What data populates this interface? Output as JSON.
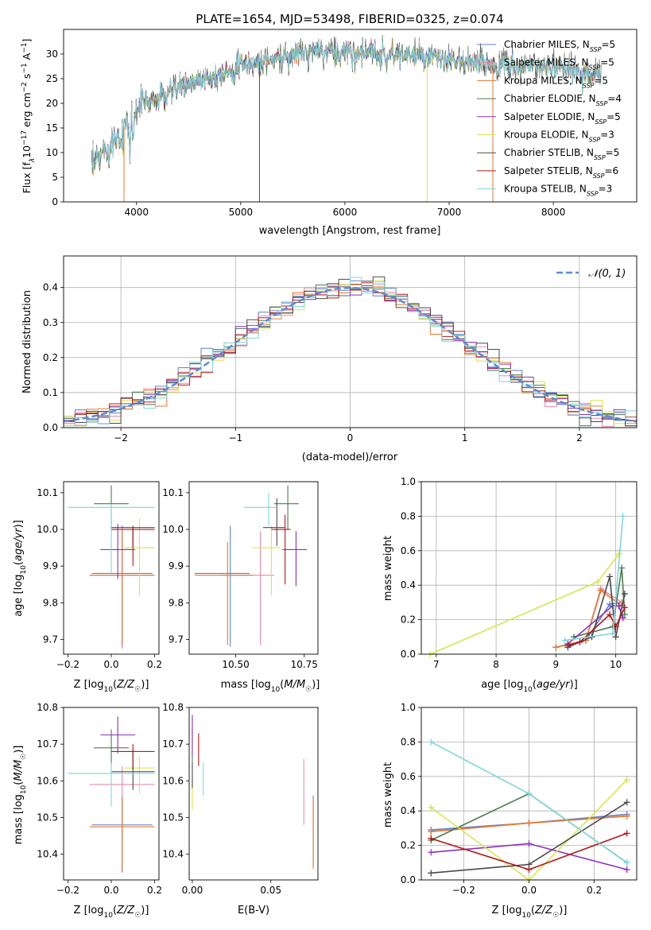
{
  "figure_title": "PLATE=1654, MJD=53498, FIBERID=0325, z=0.074",
  "colors": {
    "Chabrier MILES": "#5b7fd0",
    "Salpeter MILES": "#e98aa8",
    "Kroupa MILES": "#e07a2e",
    "Chabrier ELODIE": "#4c7a4e",
    "Salpeter ELODIE": "#8a2fbf",
    "Kroupa ELODIE": "#d7e64a",
    "Chabrier STELIB": "#4a4a4a",
    "Salpeter STELIB": "#b3181a",
    "Kroupa STELIB": "#7fd6dc",
    "gauss": "#5b8bd6"
  },
  "chart_data": [
    {
      "id": "spectrum",
      "type": "line",
      "xlabel": "wavelength [Angstrom, rest frame]",
      "ylabel": "Flux [f",
      "xlim": [
        3300,
        8800
      ],
      "ylim": [
        0,
        35
      ],
      "xticks": [
        4000,
        5000,
        6000,
        7000,
        8000
      ],
      "yticks": [
        0,
        5,
        10,
        15,
        20,
        25,
        30
      ],
      "legend_position": "right",
      "legend": [
        "Chabrier MILES, N=5",
        "Salpeter MILES, N=5",
        "Kroupa MILES, N=5",
        "Chabrier ELODIE, N=4",
        "Salpeter ELODIE, N=5",
        "Kroupa ELODIE, N=3",
        "Chabrier STELIB, N=5",
        "Salpeter STELIB, N=6",
        "Kroupa STELIB, N=3"
      ],
      "continuum": [
        [
          3560,
          6
        ],
        [
          3700,
          11
        ],
        [
          3850,
          14
        ],
        [
          3950,
          17
        ],
        [
          4050,
          20
        ],
        [
          4200,
          21
        ],
        [
          4400,
          23
        ],
        [
          4600,
          25
        ],
        [
          4800,
          26
        ],
        [
          5000,
          27.5
        ],
        [
          5200,
          28.5
        ],
        [
          5500,
          30
        ],
        [
          5800,
          30.5
        ],
        [
          6100,
          30.5
        ],
        [
          6400,
          30
        ],
        [
          6700,
          29.5
        ],
        [
          7000,
          28.5
        ],
        [
          7300,
          28
        ],
        [
          7600,
          27.5
        ],
        [
          7900,
          27.5
        ],
        [
          8200,
          26.5
        ],
        [
          8450,
          26
        ]
      ],
      "dips": [
        [
          3880,
          0
        ],
        [
          5180,
          0
        ],
        [
          6790,
          0
        ],
        [
          7420,
          0
        ]
      ]
    },
    {
      "id": "residual-histogram",
      "type": "histogram",
      "xlabel": "(data-model)/error",
      "ylabel": "Normed distribution",
      "xlim": [
        -2.5,
        2.5
      ],
      "ylim": [
        0,
        0.49
      ],
      "xticks": [
        -2,
        -1,
        0,
        1,
        2
      ],
      "yticks": [
        0,
        0.1,
        0.2,
        0.3,
        0.4
      ],
      "grid": true,
      "legend_position": "top-right",
      "gauss_label": "𝒩(0, 1)"
    },
    {
      "id": "age-vs-Z",
      "type": "scatter",
      "xlabel": "Z [log10(Z/Z☉)]",
      "ylabel": "age [log10(age/yr)]",
      "xlim": [
        -0.22,
        0.22
      ],
      "ylim": [
        9.66,
        10.13
      ],
      "xticks": [
        -0.2,
        0,
        0.2
      ],
      "yticks": [
        9.7,
        9.8,
        9.9,
        10.0,
        10.1
      ],
      "points": [
        {
          "model": "Chabrier MILES",
          "x": 0.05,
          "xerr": [
            0.14,
            0.14
          ],
          "y": 9.88,
          "yerr": [
            0.2,
            0.13
          ]
        },
        {
          "model": "Salpeter MILES",
          "x": 0.05,
          "xerr": [
            0.15,
            0.15
          ],
          "y": 9.875,
          "yerr": [
            0.2,
            0.13
          ]
        },
        {
          "model": "Kroupa MILES",
          "x": 0.05,
          "xerr": [
            0.15,
            0.15
          ],
          "y": 9.875,
          "yerr": [
            0.19,
            0.12
          ]
        },
        {
          "model": "Chabrier ELODIE",
          "x": 0.0,
          "xerr": [
            0.08,
            0.08
          ],
          "y": 10.07,
          "yerr": [
            0.07,
            0.05
          ]
        },
        {
          "model": "Salpeter ELODIE",
          "x": 0.03,
          "xerr": [
            0.08,
            0.08
          ],
          "y": 9.945,
          "yerr": [
            0.08,
            0.07
          ]
        },
        {
          "model": "Kroupa ELODIE",
          "x": 0.13,
          "xerr": [
            0.07,
            0.07
          ],
          "y": 9.95,
          "yerr": [
            0.13,
            0.08
          ]
        },
        {
          "model": "Chabrier STELIB",
          "x": 0.1,
          "xerr": [
            0.1,
            0.1
          ],
          "y": 10.005,
          "yerr": [
            0.05,
            0.0
          ]
        },
        {
          "model": "Salpeter STELIB",
          "x": 0.1,
          "xerr": [
            0.1,
            0.1
          ],
          "y": 10.0,
          "yerr": [
            0.1,
            0.01
          ]
        },
        {
          "model": "Kroupa STELIB",
          "x": 0.0,
          "xerr": [
            0.2,
            0.2
          ],
          "y": 10.06,
          "yerr": [
            0.18,
            0.01
          ]
        }
      ]
    },
    {
      "id": "age-vs-mass",
      "type": "scatter",
      "xlabel": "mass [log10(M/M☉)]",
      "ylabel": "",
      "xlim": [
        10.33,
        10.8
      ],
      "ylim": [
        9.66,
        10.13
      ],
      "xticks": [
        10.5,
        10.75
      ],
      "yticks": [
        9.7,
        9.8,
        9.9,
        10.0,
        10.1
      ],
      "points": [
        {
          "model": "Chabrier MILES",
          "x": 10.48,
          "xerr": [
            0.13,
            0.07
          ],
          "y": 9.88,
          "yerr": [
            0.2,
            0.13
          ]
        },
        {
          "model": "Salpeter MILES",
          "x": 10.59,
          "xerr": [
            0.14,
            0.05
          ],
          "y": 9.875,
          "yerr": [
            0.19,
            0.12
          ]
        },
        {
          "model": "Kroupa MILES",
          "x": 10.47,
          "xerr": [
            0.12,
            0.09
          ],
          "y": 9.875,
          "yerr": [
            0.19,
            0.09
          ]
        },
        {
          "model": "Chabrier ELODIE",
          "x": 10.69,
          "xerr": [
            0.05,
            0.04
          ],
          "y": 10.07,
          "yerr": [
            0.07,
            0.05
          ]
        },
        {
          "model": "Salpeter ELODIE",
          "x": 10.72,
          "xerr": [
            0.05,
            0.04
          ],
          "y": 9.945,
          "yerr": [
            0.1,
            0.05
          ]
        },
        {
          "model": "Kroupa ELODIE",
          "x": 10.63,
          "xerr": [
            0.07,
            0.03
          ],
          "y": 9.95,
          "yerr": [
            0.13,
            0.06
          ]
        },
        {
          "model": "Chabrier STELIB",
          "x": 10.65,
          "xerr": [
            0.05,
            0.03
          ],
          "y": 10.005,
          "yerr": [
            0.05,
            0.08
          ]
        },
        {
          "model": "Salpeter STELIB",
          "x": 10.68,
          "xerr": [
            0.05,
            0.02
          ],
          "y": 10.0,
          "yerr": [
            0.15,
            0.04
          ]
        },
        {
          "model": "Kroupa STELIB",
          "x": 10.62,
          "xerr": [
            0.09,
            0.03
          ],
          "y": 10.06,
          "yerr": [
            0.05,
            0.04
          ]
        }
      ]
    },
    {
      "id": "weight-vs-age",
      "type": "line",
      "xlabel": "age [log10(age/yr)]",
      "ylabel": "mass weight",
      "xlim": [
        6.75,
        10.35
      ],
      "ylim": [
        0,
        1.0
      ],
      "xticks": [
        7,
        8,
        9,
        10
      ],
      "yticks": [
        0,
        0.2,
        0.4,
        0.6,
        0.8,
        1.0
      ],
      "grid": true,
      "series": [
        {
          "model": "Chabrier MILES",
          "x": [
            9.0,
            9.5,
            9.9,
            10.1
          ],
          "y": [
            0.04,
            0.08,
            0.29,
            0.3
          ]
        },
        {
          "model": "Salpeter MILES",
          "x": [
            9.0,
            9.5,
            9.75,
            10.1
          ],
          "y": [
            0.04,
            0.08,
            0.38,
            0.3
          ]
        },
        {
          "model": "Kroupa MILES",
          "x": [
            9.0,
            9.5,
            9.75,
            10.1
          ],
          "y": [
            0.04,
            0.08,
            0.37,
            0.28
          ]
        },
        {
          "model": "Chabrier ELODIE",
          "x": [
            9.3,
            9.95,
            10.1,
            10.15
          ],
          "y": [
            0.1,
            0.16,
            0.5,
            0.23
          ]
        },
        {
          "model": "Salpeter ELODIE",
          "x": [
            9.2,
            9.95,
            10.05,
            10.12
          ],
          "y": [
            0.06,
            0.28,
            0.28,
            0.21
          ]
        },
        {
          "model": "Kroupa ELODIE",
          "x": [
            6.9,
            9.7,
            10.05
          ],
          "y": [
            0.0,
            0.42,
            0.58
          ]
        },
        {
          "model": "Chabrier STELIB",
          "x": [
            9.2,
            9.6,
            9.9,
            10.0,
            10.15
          ],
          "y": [
            0.04,
            0.1,
            0.45,
            0.1,
            0.35
          ]
        },
        {
          "model": "Salpeter STELIB",
          "x": [
            9.2,
            9.4,
            9.9,
            10.0,
            10.15
          ],
          "y": [
            0.05,
            0.07,
            0.23,
            0.16,
            0.27
          ]
        },
        {
          "model": "Kroupa STELIB",
          "x": [
            9.15,
            9.95,
            10.12
          ],
          "y": [
            0.08,
            0.12,
            0.8
          ]
        }
      ]
    },
    {
      "id": "mass-vs-Z",
      "type": "scatter",
      "xlabel": "Z [log10(Z/Z☉)]",
      "ylabel": "mass [log10(M/M☉)]",
      "xlim": [
        -0.22,
        0.22
      ],
      "ylim": [
        10.33,
        10.8
      ],
      "xticks": [
        -0.2,
        0,
        0.2
      ],
      "yticks": [
        10.4,
        10.5,
        10.6,
        10.7,
        10.8
      ],
      "points": [
        {
          "model": "Chabrier MILES",
          "x": 0.05,
          "xerr": [
            0.14,
            0.14
          ],
          "y": 10.48,
          "yerr": [
            0.13,
            0.08
          ]
        },
        {
          "model": "Salpeter MILES",
          "x": 0.05,
          "xerr": [
            0.15,
            0.15
          ],
          "y": 10.59,
          "yerr": [
            0.14,
            0.05
          ]
        },
        {
          "model": "Kroupa MILES",
          "x": 0.05,
          "xerr": [
            0.15,
            0.15
          ],
          "y": 10.475,
          "yerr": [
            0.12,
            0.08
          ]
        },
        {
          "model": "Chabrier ELODIE",
          "x": 0.0,
          "xerr": [
            0.08,
            0.08
          ],
          "y": 10.69,
          "yerr": [
            0.05,
            0.05
          ]
        },
        {
          "model": "Salpeter ELODIE",
          "x": 0.03,
          "xerr": [
            0.08,
            0.08
          ],
          "y": 10.725,
          "yerr": [
            0.05,
            0.05
          ]
        },
        {
          "model": "Kroupa ELODIE",
          "x": 0.13,
          "xerr": [
            0.07,
            0.07
          ],
          "y": 10.635,
          "yerr": [
            0.07,
            0.03
          ]
        },
        {
          "model": "Chabrier STELIB",
          "x": 0.1,
          "xerr": [
            0.1,
            0.1
          ],
          "y": 10.625,
          "yerr": [
            0.05,
            0.06
          ]
        },
        {
          "model": "Salpeter STELIB",
          "x": 0.1,
          "xerr": [
            0.1,
            0.1
          ],
          "y": 10.68,
          "yerr": [
            0.05,
            0.02
          ]
        },
        {
          "model": "Kroupa STELIB",
          "x": 0.0,
          "xerr": [
            0.2,
            0.2
          ],
          "y": 10.62,
          "yerr": [
            0.09,
            0.03
          ]
        }
      ]
    },
    {
      "id": "mass-vs-EBV",
      "type": "scatter",
      "xlabel": "E(B-V)",
      "ylabel": "",
      "xlim": [
        -0.002,
        0.08
      ],
      "ylim": [
        10.33,
        10.8
      ],
      "xticks": [
        0.0,
        0.05
      ],
      "yticks": [
        10.4,
        10.5,
        10.6,
        10.7,
        10.8
      ],
      "points": [
        {
          "model": "Chabrier MILES",
          "x": 0.077,
          "y": 10.5,
          "yerr": [
            0.13,
            0.06
          ]
        },
        {
          "model": "Salpeter MILES",
          "x": 0.071,
          "y": 10.57,
          "yerr": [
            0.09,
            0.09
          ]
        },
        {
          "model": "Kroupa MILES",
          "x": 0.077,
          "y": 10.45,
          "yerr": [
            0.09,
            0.1
          ]
        },
        {
          "model": "Chabrier ELODIE",
          "x": 0.0,
          "y": 10.7,
          "yerr": [
            0.05,
            0.04
          ]
        },
        {
          "model": "Salpeter ELODIE",
          "x": 0.0,
          "y": 10.72,
          "yerr": [
            0.05,
            0.06
          ]
        },
        {
          "model": "Kroupa ELODIE",
          "x": 0.0,
          "y": 10.56,
          "yerr": [
            0.04,
            0.05
          ]
        },
        {
          "model": "Chabrier STELIB",
          "x": 0.0,
          "y": 10.62,
          "yerr": [
            0.04,
            0.03
          ]
        },
        {
          "model": "Salpeter STELIB",
          "x": 0.004,
          "y": 10.68,
          "yerr": [
            0.04,
            0.05
          ]
        },
        {
          "model": "Kroupa STELIB",
          "x": 0.007,
          "y": 10.6,
          "yerr": [
            0.04,
            0.05
          ]
        }
      ]
    },
    {
      "id": "weight-vs-Z",
      "type": "line",
      "xlabel": "Z [log10(Z/Z☉)]",
      "ylabel": "mass weight",
      "xlim": [
        -0.33,
        0.33
      ],
      "ylim": [
        0,
        1.0
      ],
      "xticks": [
        -0.2,
        0.0,
        0.2
      ],
      "yticks": [
        0,
        0.2,
        0.4,
        0.6,
        0.8,
        1.0
      ],
      "grid": true,
      "series": [
        {
          "model": "Chabrier MILES",
          "x": [
            -0.3,
            0.0,
            0.3
          ],
          "y": [
            0.29,
            0.33,
            0.38
          ]
        },
        {
          "model": "Salpeter MILES",
          "x": [
            -0.3,
            0.0,
            0.3
          ],
          "y": [
            0.28,
            0.33,
            0.37
          ]
        },
        {
          "model": "Kroupa MILES",
          "x": [
            -0.3,
            0.0,
            0.3
          ],
          "y": [
            0.28,
            0.33,
            0.37
          ]
        },
        {
          "model": "Chabrier ELODIE",
          "x": [
            -0.3,
            0.0,
            0.3
          ],
          "y": [
            0.23,
            0.5,
            0.1
          ]
        },
        {
          "model": "Salpeter ELODIE",
          "x": [
            -0.3,
            0.0,
            0.3
          ],
          "y": [
            0.16,
            0.21,
            0.06
          ]
        },
        {
          "model": "Kroupa ELODIE",
          "x": [
            -0.3,
            0.0,
            0.3
          ],
          "y": [
            0.42,
            0.0,
            0.58
          ]
        },
        {
          "model": "Chabrier STELIB",
          "x": [
            -0.3,
            0.0,
            0.3
          ],
          "y": [
            0.04,
            0.09,
            0.45
          ]
        },
        {
          "model": "Salpeter STELIB",
          "x": [
            -0.3,
            0.0,
            0.3
          ],
          "y": [
            0.24,
            0.06,
            0.27
          ]
        },
        {
          "model": "Kroupa STELIB",
          "x": [
            -0.3,
            0.0,
            0.3
          ],
          "y": [
            0.8,
            0.5,
            0.1
          ]
        }
      ]
    }
  ]
}
